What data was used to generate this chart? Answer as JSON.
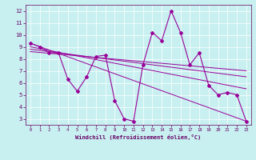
{
  "xlabel": "Windchill (Refroidissement éolien,°C)",
  "bg_color": "#c8f0f0",
  "line_color": "#990099",
  "label_color": "#660066",
  "xlim": [
    -0.5,
    23.5
  ],
  "ylim": [
    2.5,
    12.5
  ],
  "xticks": [
    0,
    1,
    2,
    3,
    4,
    5,
    6,
    7,
    8,
    9,
    10,
    11,
    12,
    13,
    14,
    15,
    16,
    17,
    18,
    19,
    20,
    21,
    22,
    23
  ],
  "yticks": [
    3,
    4,
    5,
    6,
    7,
    8,
    9,
    10,
    11,
    12
  ],
  "series1": [
    [
      0,
      9.3
    ],
    [
      1,
      9.0
    ],
    [
      2,
      8.5
    ],
    [
      3,
      8.5
    ],
    [
      4,
      6.3
    ],
    [
      5,
      5.3
    ],
    [
      6,
      6.5
    ],
    [
      7,
      8.2
    ],
    [
      8,
      8.3
    ],
    [
      9,
      4.5
    ],
    [
      10,
      3.0
    ],
    [
      11,
      2.8
    ],
    [
      12,
      7.5
    ],
    [
      13,
      10.2
    ],
    [
      14,
      9.5
    ],
    [
      15,
      12.0
    ],
    [
      16,
      10.2
    ],
    [
      17,
      7.5
    ],
    [
      18,
      8.5
    ],
    [
      19,
      5.8
    ],
    [
      20,
      5.0
    ],
    [
      21,
      5.2
    ],
    [
      22,
      5.0
    ],
    [
      23,
      2.8
    ]
  ],
  "trend_lines": [
    [
      [
        0,
        9.3
      ],
      [
        23,
        2.8
      ]
    ],
    [
      [
        0,
        9.0
      ],
      [
        23,
        5.5
      ]
    ],
    [
      [
        0,
        8.8
      ],
      [
        23,
        6.5
      ]
    ],
    [
      [
        0,
        8.6
      ],
      [
        23,
        7.0
      ]
    ]
  ]
}
